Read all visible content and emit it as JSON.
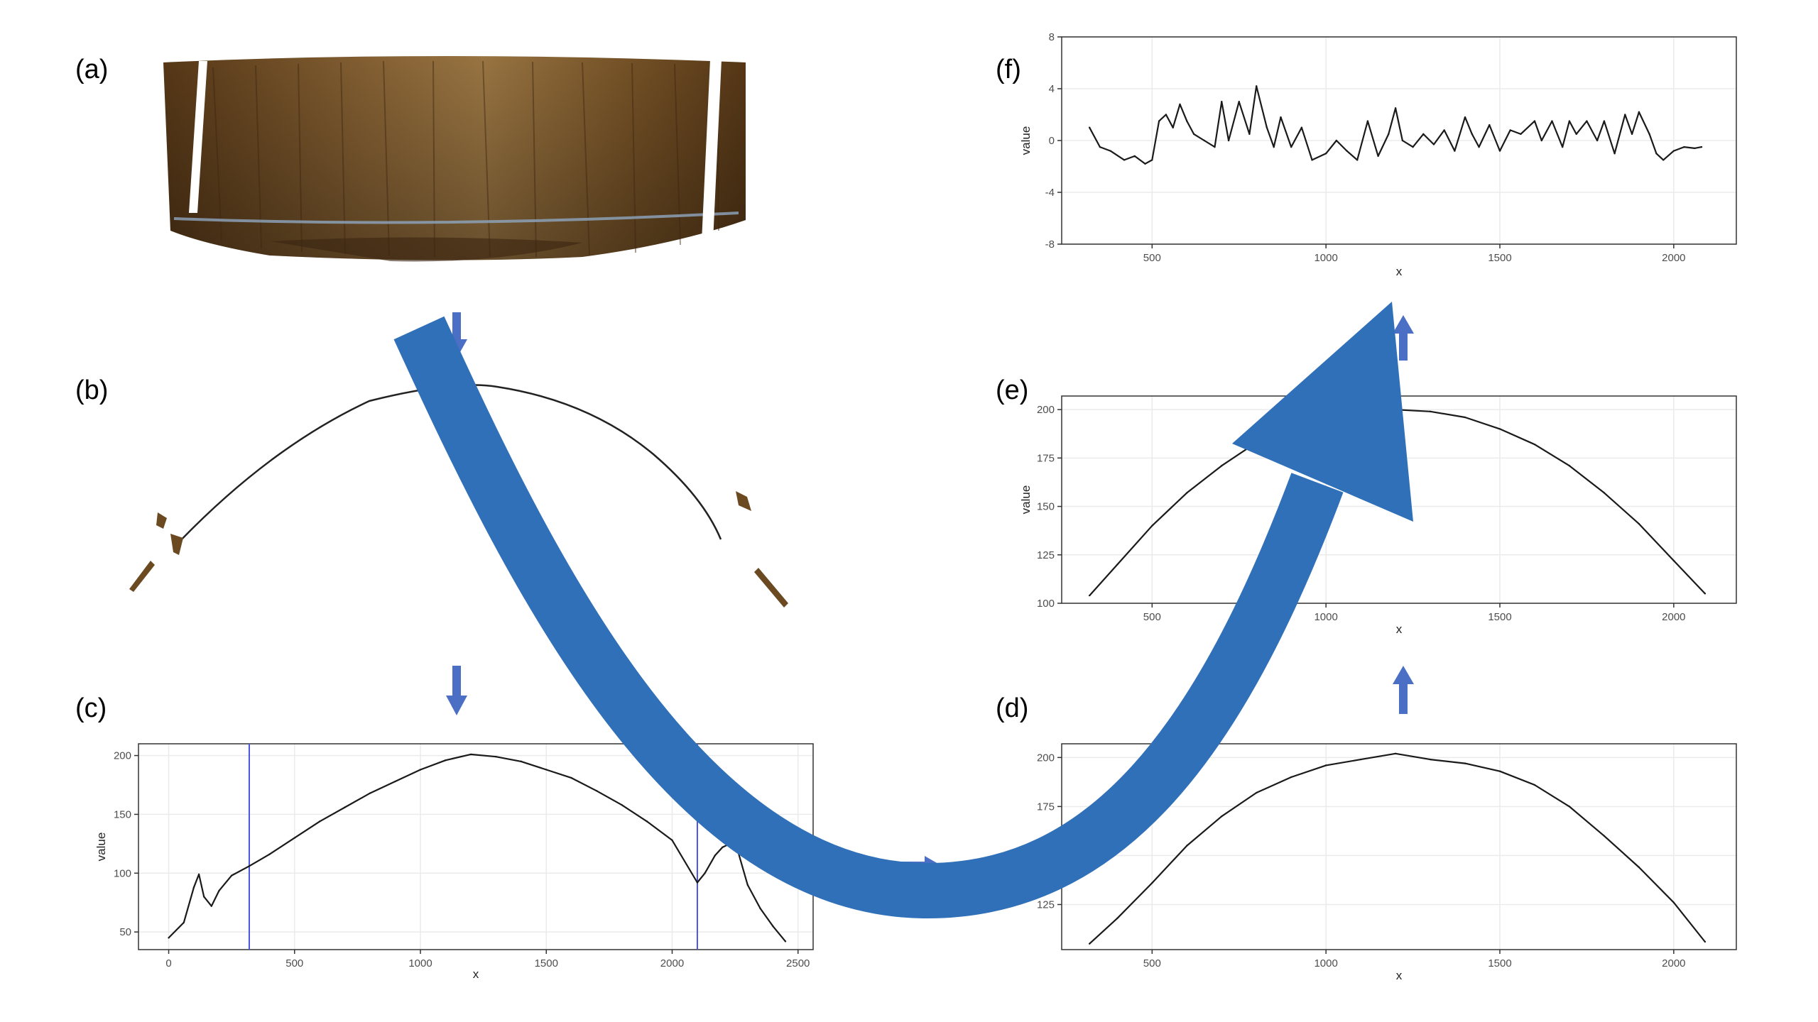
{
  "panels": {
    "a": {
      "label": "(a)"
    },
    "b": {
      "label": "(b)"
    },
    "c": {
      "label": "(c)"
    },
    "d": {
      "label": "(d)"
    },
    "e": {
      "label": "(e)"
    },
    "f": {
      "label": "(f)"
    }
  },
  "colors": {
    "big_arrow": "#3070b8",
    "small_arrow": "#4a6fc4",
    "cutoff_lines": "#4a55e0",
    "curve": "#1a1a1a",
    "scan_brown": "#6b4a22"
  },
  "chart_data": [
    {
      "panel": "(c)",
      "type": "line",
      "xlabel": "x",
      "ylabel": "value",
      "xlim": [
        -120,
        2560
      ],
      "ylim": [
        35,
        210
      ],
      "xticks": [
        0,
        500,
        1000,
        1500,
        2000,
        2500
      ],
      "yticks": [
        50,
        100,
        150,
        200
      ],
      "vlines": [
        320,
        2100
      ],
      "series": [
        {
          "x": [
            0,
            60,
            100,
            120,
            140,
            170,
            200,
            250,
            320,
            400,
            500,
            600,
            700,
            800,
            900,
            1000,
            1100,
            1200,
            1300,
            1400,
            1500,
            1600,
            1700,
            1800,
            1900,
            2000,
            2100,
            2130,
            2170,
            2200,
            2250,
            2300,
            2350,
            2400,
            2450
          ],
          "y": [
            45,
            58,
            88,
            99,
            80,
            72,
            85,
            98,
            106,
            116,
            130,
            144,
            156,
            168,
            178,
            188,
            196,
            201,
            199,
            195,
            188,
            181,
            170,
            158,
            144,
            128,
            92,
            100,
            115,
            122,
            127,
            90,
            70,
            55,
            42
          ]
        }
      ]
    },
    {
      "panel": "(d)",
      "type": "line",
      "xlabel": "x",
      "ylabel": "",
      "xlim": [
        240,
        2180
      ],
      "ylim": [
        102,
        207
      ],
      "xticks": [
        500,
        1000,
        1500,
        2000
      ],
      "yticks": [
        125,
        150,
        175,
        200
      ],
      "series": [
        {
          "x": [
            320,
            400,
            500,
            600,
            700,
            800,
            900,
            1000,
            1100,
            1200,
            1300,
            1400,
            1500,
            1600,
            1700,
            1800,
            1900,
            2000,
            2090
          ],
          "y": [
            105,
            118,
            136,
            155,
            170,
            182,
            190,
            196,
            199,
            202,
            199,
            197,
            193,
            186,
            175,
            160,
            144,
            126,
            106
          ]
        }
      ]
    },
    {
      "panel": "(e)",
      "type": "line",
      "xlabel": "x",
      "ylabel": "value",
      "xlim": [
        240,
        2180
      ],
      "ylim": [
        100,
        207
      ],
      "xticks": [
        500,
        1000,
        1500,
        2000
      ],
      "yticks": [
        100,
        125,
        150,
        175,
        200
      ],
      "series": [
        {
          "x": [
            320,
            400,
            500,
            600,
            700,
            800,
            900,
            1000,
            1100,
            1200,
            1300,
            1400,
            1500,
            1600,
            1700,
            1800,
            1900,
            2000,
            2090
          ],
          "y": [
            104,
            120,
            140,
            157,
            171,
            183,
            191,
            197,
            200,
            200,
            199,
            196,
            190,
            182,
            171,
            157,
            141,
            122,
            105
          ]
        }
      ]
    },
    {
      "panel": "(f)",
      "type": "line",
      "xlabel": "x",
      "ylabel": "value",
      "xlim": [
        240,
        2180
      ],
      "ylim": [
        -8,
        8
      ],
      "xticks": [
        500,
        1000,
        1500,
        2000
      ],
      "yticks": [
        -8,
        -4,
        0,
        4,
        8
      ],
      "series": [
        {
          "x": [
            320,
            350,
            380,
            420,
            450,
            480,
            500,
            520,
            540,
            560,
            580,
            600,
            620,
            650,
            680,
            700,
            720,
            750,
            780,
            800,
            830,
            850,
            870,
            900,
            930,
            960,
            1000,
            1030,
            1060,
            1090,
            1120,
            1150,
            1180,
            1200,
            1220,
            1250,
            1280,
            1310,
            1340,
            1370,
            1400,
            1420,
            1440,
            1470,
            1500,
            1530,
            1560,
            1600,
            1620,
            1650,
            1680,
            1700,
            1720,
            1750,
            1780,
            1800,
            1830,
            1860,
            1880,
            1900,
            1930,
            1950,
            1970,
            2000,
            2030,
            2060,
            2080
          ],
          "y": [
            1,
            -0.5,
            -0.8,
            -1.5,
            -1.2,
            -1.8,
            -1.5,
            1.5,
            2,
            1,
            2.8,
            1.5,
            0.5,
            0,
            -0.5,
            3,
            0,
            3,
            0.5,
            4.2,
            1,
            -0.5,
            1.8,
            -0.5,
            1,
            -1.5,
            -1,
            0,
            -0.8,
            -1.5,
            1.5,
            -1.2,
            0.5,
            2.5,
            0,
            -0.5,
            0.5,
            -0.3,
            0.8,
            -0.8,
            1.8,
            0.5,
            -0.5,
            1.2,
            -0.8,
            0.8,
            0.5,
            1.5,
            0,
            1.5,
            -0.5,
            1.5,
            0.5,
            1.5,
            0,
            1.5,
            -1,
            2,
            0.5,
            2.2,
            0.5,
            -1,
            -1.5,
            -0.8,
            -0.5,
            -0.6,
            -0.5
          ]
        }
      ]
    }
  ]
}
